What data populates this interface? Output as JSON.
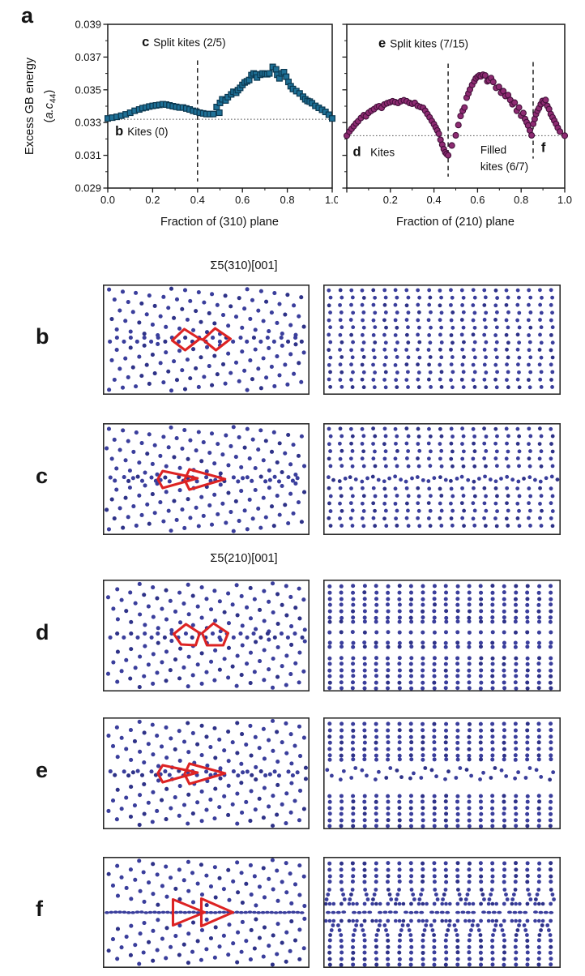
{
  "figure_labels": {
    "a": "a"
  },
  "colors": {
    "atom": "#3a3e9c",
    "atom_alt": "#2e3288",
    "kite": "#dd2323",
    "border": "#2b2b2b",
    "axis": "#1a1a1a",
    "teal_marker": "#1e7096",
    "purple_marker": "#8e2b72"
  },
  "chart_data": [
    {
      "id": "gb310",
      "type": "scatter",
      "marker": "square",
      "marker_fill": "#1e7096",
      "marker_edge": "#0b3850",
      "xlabel": "Fraction of (310) plane",
      "ylabel": "Excess GB energy",
      "ylabel_unit": {
        "pre": "(",
        "italic": "a.c",
        "sub": "44",
        "post": ")"
      },
      "xlim": [
        0,
        1
      ],
      "ylim": [
        0.029,
        0.039
      ],
      "xticks": [
        {
          "v": 0.0,
          "label": "0.0"
        },
        {
          "v": 0.2,
          "label": "0.2"
        },
        {
          "v": 0.4,
          "label": "0.4"
        },
        {
          "v": 0.6,
          "label": "0.6"
        },
        {
          "v": 0.8,
          "label": "0.8"
        },
        {
          "v": 1.0,
          "label": "1.0"
        }
      ],
      "yticks": [
        {
          "v": 0.029,
          "label": "0.029"
        },
        {
          "v": 0.031,
          "label": "0.031"
        },
        {
          "v": 0.033,
          "label": "0.033"
        },
        {
          "v": 0.035,
          "label": "0.035"
        },
        {
          "v": 0.037,
          "label": "0.037"
        },
        {
          "v": 0.039,
          "label": "0.039"
        }
      ],
      "baseline_y": 0.0332,
      "vlines": [
        {
          "x": 0.4,
          "y0": 0.0294,
          "y1": 0.0368
        }
      ],
      "annotations": [
        {
          "bold": "c",
          "text": "Split kites (2/5)",
          "x": 0.152,
          "y": 0.03766
        },
        {
          "bold": "b",
          "text": "Kites (0)",
          "x": 0.033,
          "y": 0.03222
        }
      ],
      "points": [
        [
          0.0,
          0.03325
        ],
        [
          0.02,
          0.0333
        ],
        [
          0.04,
          0.03335
        ],
        [
          0.06,
          0.03342
        ],
        [
          0.08,
          0.0335
        ],
        [
          0.1,
          0.0336
        ],
        [
          0.12,
          0.03372
        ],
        [
          0.14,
          0.0338
        ],
        [
          0.155,
          0.03388
        ],
        [
          0.17,
          0.03392
        ],
        [
          0.185,
          0.03398
        ],
        [
          0.2,
          0.03402
        ],
        [
          0.215,
          0.03405
        ],
        [
          0.23,
          0.03408
        ],
        [
          0.245,
          0.03412
        ],
        [
          0.26,
          0.0341
        ],
        [
          0.275,
          0.03405
        ],
        [
          0.29,
          0.034
        ],
        [
          0.305,
          0.03396
        ],
        [
          0.32,
          0.03392
        ],
        [
          0.335,
          0.03392
        ],
        [
          0.35,
          0.03386
        ],
        [
          0.365,
          0.0338
        ],
        [
          0.38,
          0.03372
        ],
        [
          0.395,
          0.03366
        ],
        [
          0.41,
          0.0336
        ],
        [
          0.425,
          0.03356
        ],
        [
          0.44,
          0.03352
        ],
        [
          0.455,
          0.03352
        ],
        [
          0.47,
          0.03352
        ],
        [
          0.485,
          0.03395
        ],
        [
          0.497,
          0.0336
        ],
        [
          0.5,
          0.0342
        ],
        [
          0.51,
          0.03442
        ],
        [
          0.525,
          0.03435
        ],
        [
          0.535,
          0.03455
        ],
        [
          0.55,
          0.03472
        ],
        [
          0.56,
          0.03488
        ],
        [
          0.572,
          0.03482
        ],
        [
          0.58,
          0.03498
        ],
        [
          0.59,
          0.03512
        ],
        [
          0.6,
          0.0353
        ],
        [
          0.61,
          0.03545
        ],
        [
          0.62,
          0.03552
        ],
        [
          0.63,
          0.0356
        ],
        [
          0.64,
          0.0359
        ],
        [
          0.65,
          0.036
        ],
        [
          0.66,
          0.03595
        ],
        [
          0.665,
          0.03575
        ],
        [
          0.68,
          0.03592
        ],
        [
          0.69,
          0.036
        ],
        [
          0.7,
          0.03598
        ],
        [
          0.71,
          0.03595
        ],
        [
          0.72,
          0.036
        ],
        [
          0.735,
          0.0364
        ],
        [
          0.75,
          0.03625
        ],
        [
          0.755,
          0.03592
        ],
        [
          0.765,
          0.0357
        ],
        [
          0.775,
          0.036
        ],
        [
          0.785,
          0.03608
        ],
        [
          0.795,
          0.0358
        ],
        [
          0.805,
          0.03548
        ],
        [
          0.815,
          0.03522
        ],
        [
          0.825,
          0.03505
        ],
        [
          0.84,
          0.03492
        ],
        [
          0.855,
          0.03478
        ],
        [
          0.87,
          0.03458
        ],
        [
          0.88,
          0.03442
        ],
        [
          0.89,
          0.03432
        ],
        [
          0.9,
          0.03428
        ],
        [
          0.91,
          0.03418
        ],
        [
          0.925,
          0.03402
        ],
        [
          0.94,
          0.0339
        ],
        [
          0.955,
          0.03378
        ],
        [
          0.97,
          0.03365
        ],
        [
          0.985,
          0.03348
        ],
        [
          1.0,
          0.03325
        ]
      ]
    },
    {
      "id": "gb210",
      "type": "scatter",
      "marker": "circle",
      "marker_fill": "#8e2b72",
      "marker_edge": "#43103a",
      "xlabel": "Fraction of (210) plane",
      "xlim": [
        0,
        1
      ],
      "ylim": [
        0.029,
        0.039
      ],
      "xticks": [
        {
          "v": 0.0,
          "label": ""
        },
        {
          "v": 0.2,
          "label": "0.2"
        },
        {
          "v": 0.4,
          "label": "0.4"
        },
        {
          "v": 0.6,
          "label": "0.6"
        },
        {
          "v": 0.8,
          "label": "0.8"
        },
        {
          "v": 1.0,
          "label": "1.0"
        }
      ],
      "yticks": [
        {
          "v": 0.029,
          "label": ""
        },
        {
          "v": 0.031,
          "label": ""
        },
        {
          "v": 0.033,
          "label": ""
        },
        {
          "v": 0.035,
          "label": ""
        },
        {
          "v": 0.037,
          "label": ""
        },
        {
          "v": 0.039,
          "label": ""
        }
      ],
      "baseline_y": 0.0322,
      "vlines": [
        {
          "x": 0.465,
          "y0": 0.0297,
          "y1": 0.0366
        },
        {
          "x": 0.855,
          "y0": 0.0308,
          "y1": 0.0367
        }
      ],
      "annotations": [
        {
          "bold": "e",
          "text": "Split kites (7/15)",
          "x": 0.145,
          "y": 0.0376
        },
        {
          "bold": "d",
          "text": "",
          "x": 0.028,
          "y": 0.03095
        },
        {
          "bold": "",
          "text": "Kites",
          "x": 0.108,
          "y": 0.03095
        },
        {
          "bold": "",
          "text": "Filled",
          "x": 0.613,
          "y": 0.0311
        },
        {
          "bold": "",
          "text": "kites (6/7)",
          "x": 0.613,
          "y": 0.0301
        },
        {
          "bold": "f",
          "text": "",
          "x": 0.892,
          "y": 0.0312
        }
      ],
      "points": [
        [
          0.0,
          0.0322
        ],
        [
          0.012,
          0.03245
        ],
        [
          0.022,
          0.03262
        ],
        [
          0.032,
          0.03278
        ],
        [
          0.042,
          0.03295
        ],
        [
          0.052,
          0.03308
        ],
        [
          0.065,
          0.03328
        ],
        [
          0.078,
          0.03345
        ],
        [
          0.088,
          0.03338
        ],
        [
          0.1,
          0.0336
        ],
        [
          0.112,
          0.03372
        ],
        [
          0.125,
          0.03382
        ],
        [
          0.138,
          0.03395
        ],
        [
          0.148,
          0.034
        ],
        [
          0.16,
          0.0339
        ],
        [
          0.172,
          0.0341
        ],
        [
          0.185,
          0.03418
        ],
        [
          0.198,
          0.03424
        ],
        [
          0.21,
          0.0343
        ],
        [
          0.222,
          0.03425
        ],
        [
          0.235,
          0.0342
        ],
        [
          0.248,
          0.0343
        ],
        [
          0.262,
          0.03436
        ],
        [
          0.275,
          0.0343
        ],
        [
          0.288,
          0.0342
        ],
        [
          0.3,
          0.03415
        ],
        [
          0.312,
          0.0342
        ],
        [
          0.325,
          0.03402
        ],
        [
          0.338,
          0.03395
        ],
        [
          0.35,
          0.0339
        ],
        [
          0.36,
          0.03372
        ],
        [
          0.37,
          0.03352
        ],
        [
          0.38,
          0.03332
        ],
        [
          0.39,
          0.0331
        ],
        [
          0.4,
          0.0329
        ],
        [
          0.408,
          0.0327
        ],
        [
          0.415,
          0.03252
        ],
        [
          0.422,
          0.03232
        ],
        [
          0.43,
          0.03195
        ],
        [
          0.438,
          0.03165
        ],
        [
          0.445,
          0.03138
        ],
        [
          0.452,
          0.03118
        ],
        [
          0.458,
          0.03108
        ],
        [
          0.465,
          0.031
        ],
        [
          0.482,
          0.0316
        ],
        [
          0.5,
          0.03222
        ],
        [
          0.512,
          0.03285
        ],
        [
          0.522,
          0.0334
        ],
        [
          0.532,
          0.03372
        ],
        [
          0.54,
          0.03392
        ],
        [
          0.55,
          0.03452
        ],
        [
          0.558,
          0.03478
        ],
        [
          0.565,
          0.03502
        ],
        [
          0.575,
          0.0353
        ],
        [
          0.585,
          0.03552
        ],
        [
          0.592,
          0.0357
        ],
        [
          0.6,
          0.0358
        ],
        [
          0.608,
          0.03588
        ],
        [
          0.615,
          0.03582
        ],
        [
          0.625,
          0.03592
        ],
        [
          0.635,
          0.03588
        ],
        [
          0.645,
          0.03552
        ],
        [
          0.652,
          0.03558
        ],
        [
          0.662,
          0.03572
        ],
        [
          0.672,
          0.03548
        ],
        [
          0.685,
          0.03512
        ],
        [
          0.698,
          0.03518
        ],
        [
          0.708,
          0.03482
        ],
        [
          0.718,
          0.03492
        ],
        [
          0.728,
          0.03462
        ],
        [
          0.74,
          0.03468
        ],
        [
          0.75,
          0.03438
        ],
        [
          0.76,
          0.03412
        ],
        [
          0.77,
          0.03422
        ],
        [
          0.78,
          0.03372
        ],
        [
          0.79,
          0.03392
        ],
        [
          0.8,
          0.03342
        ],
        [
          0.81,
          0.03358
        ],
        [
          0.818,
          0.03322
        ],
        [
          0.825,
          0.03302
        ],
        [
          0.832,
          0.03282
        ],
        [
          0.84,
          0.03252
        ],
        [
          0.848,
          0.03222
        ],
        [
          0.855,
          0.03292
        ],
        [
          0.862,
          0.03322
        ],
        [
          0.868,
          0.03352
        ],
        [
          0.875,
          0.03372
        ],
        [
          0.882,
          0.03388
        ],
        [
          0.89,
          0.03412
        ],
        [
          0.898,
          0.03432
        ],
        [
          0.905,
          0.03422
        ],
        [
          0.912,
          0.03438
        ],
        [
          0.92,
          0.03402
        ],
        [
          0.928,
          0.03382
        ],
        [
          0.936,
          0.03352
        ],
        [
          0.944,
          0.03332
        ],
        [
          0.952,
          0.03312
        ],
        [
          0.96,
          0.03292
        ],
        [
          0.968,
          0.03268
        ],
        [
          0.978,
          0.03245
        ],
        [
          1.0,
          0.0322
        ]
      ]
    }
  ],
  "structure_panels": {
    "group_titles": [
      {
        "text": "Σ5(310)[001]"
      },
      {
        "text": "Σ5(210)[001]"
      }
    ],
    "rows": [
      {
        "letter": "b",
        "left_defect": "kites",
        "left_tilt": 8,
        "left_mid": "zig",
        "right_variant": "310",
        "right_disturb": "none"
      },
      {
        "letter": "c",
        "left_defect": "split",
        "left_tilt": 8,
        "left_mid": "pairs",
        "right_variant": "310",
        "right_disturb": "mid"
      },
      {
        "letter": "d",
        "left_defect": "kites210",
        "left_tilt": 12,
        "left_mid": "zig",
        "right_variant": "210",
        "right_disturb": "none"
      },
      {
        "letter": "e",
        "left_defect": "split",
        "left_tilt": 12,
        "left_mid": "pairs",
        "right_variant": "210",
        "right_disturb": "mid"
      },
      {
        "letter": "f",
        "left_defect": "filled",
        "left_tilt": 12,
        "left_mid": "line",
        "right_variant": "210",
        "right_disturb": "filled"
      }
    ]
  }
}
